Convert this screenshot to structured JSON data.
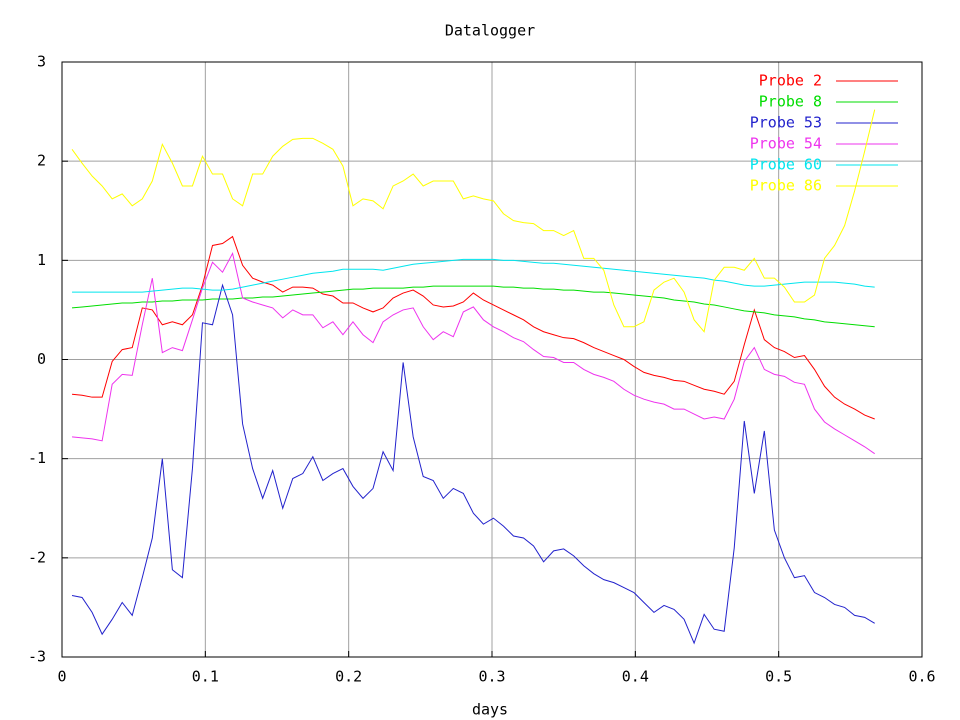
{
  "chart_data": {
    "type": "line",
    "title": "Datalogger",
    "x_label": "days",
    "x": [
      0.007,
      0.014,
      0.021,
      0.028,
      0.035,
      0.042,
      0.049,
      0.056,
      0.063,
      0.07,
      0.077,
      0.084,
      0.091,
      0.098,
      0.105,
      0.112,
      0.119,
      0.126,
      0.133,
      0.14,
      0.147,
      0.154,
      0.161,
      0.168,
      0.175,
      0.182,
      0.189,
      0.196,
      0.203,
      0.21,
      0.217,
      0.224,
      0.231,
      0.238,
      0.245,
      0.252,
      0.259,
      0.266,
      0.273,
      0.28,
      0.287,
      0.294,
      0.301,
      0.308,
      0.315,
      0.322,
      0.329,
      0.336,
      0.343,
      0.35,
      0.357,
      0.364,
      0.371,
      0.378,
      0.385,
      0.392,
      0.399,
      0.406,
      0.413,
      0.42,
      0.427,
      0.434,
      0.441,
      0.448,
      0.455,
      0.462,
      0.469,
      0.476,
      0.483,
      0.49,
      0.497,
      0.504,
      0.511,
      0.518,
      0.525,
      0.532,
      0.539,
      0.546,
      0.553,
      0.56,
      0.567
    ],
    "series": [
      {
        "name": "Probe 2",
        "color": "#ff0000",
        "values": [
          -0.35,
          -0.36,
          -0.38,
          -0.38,
          -0.02,
          0.1,
          0.12,
          0.52,
          0.5,
          0.35,
          0.38,
          0.35,
          0.45,
          0.75,
          1.15,
          1.17,
          1.24,
          0.95,
          0.82,
          0.78,
          0.75,
          0.68,
          0.73,
          0.73,
          0.72,
          0.66,
          0.64,
          0.57,
          0.57,
          0.52,
          0.48,
          0.52,
          0.62,
          0.67,
          0.7,
          0.64,
          0.55,
          0.53,
          0.54,
          0.58,
          0.67,
          0.6,
          0.55,
          0.5,
          0.45,
          0.4,
          0.33,
          0.28,
          0.25,
          0.22,
          0.21,
          0.17,
          0.12,
          0.08,
          0.04,
          0.0,
          -0.07,
          -0.13,
          -0.16,
          -0.18,
          -0.21,
          -0.22,
          -0.26,
          -0.3,
          -0.32,
          -0.35,
          -0.22,
          0.15,
          0.5,
          0.2,
          0.12,
          0.08,
          0.02,
          0.04,
          -0.1,
          -0.27,
          -0.38,
          -0.45,
          -0.5,
          -0.56,
          -0.6
        ]
      },
      {
        "name": "Probe 8",
        "color": "#00dd00",
        "values": [
          0.52,
          0.53,
          0.54,
          0.55,
          0.56,
          0.57,
          0.57,
          0.58,
          0.58,
          0.59,
          0.59,
          0.6,
          0.6,
          0.6,
          0.61,
          0.61,
          0.61,
          0.62,
          0.62,
          0.63,
          0.63,
          0.64,
          0.65,
          0.66,
          0.67,
          0.68,
          0.69,
          0.7,
          0.71,
          0.71,
          0.72,
          0.72,
          0.72,
          0.72,
          0.73,
          0.73,
          0.74,
          0.74,
          0.74,
          0.74,
          0.74,
          0.74,
          0.74,
          0.73,
          0.73,
          0.72,
          0.72,
          0.71,
          0.71,
          0.7,
          0.7,
          0.69,
          0.68,
          0.68,
          0.67,
          0.66,
          0.65,
          0.64,
          0.63,
          0.62,
          0.6,
          0.59,
          0.58,
          0.56,
          0.55,
          0.53,
          0.51,
          0.49,
          0.48,
          0.47,
          0.45,
          0.44,
          0.43,
          0.41,
          0.4,
          0.38,
          0.37,
          0.36,
          0.35,
          0.34,
          0.33
        ]
      },
      {
        "name": "Probe 53",
        "color": "#2222cc",
        "values": [
          -2.38,
          -2.4,
          -2.55,
          -2.77,
          -2.62,
          -2.45,
          -2.58,
          -2.2,
          -1.8,
          -1.0,
          -2.12,
          -2.2,
          -1.1,
          0.37,
          0.35,
          0.75,
          0.45,
          -0.65,
          -1.1,
          -1.4,
          -1.12,
          -1.5,
          -1.2,
          -1.15,
          -0.98,
          -1.22,
          -1.15,
          -1.1,
          -1.28,
          -1.4,
          -1.3,
          -0.93,
          -1.12,
          -0.03,
          -0.78,
          -1.18,
          -1.22,
          -1.4,
          -1.3,
          -1.35,
          -1.55,
          -1.66,
          -1.6,
          -1.68,
          -1.78,
          -1.8,
          -1.88,
          -2.04,
          -1.93,
          -1.91,
          -1.98,
          -2.08,
          -2.16,
          -2.22,
          -2.25,
          -2.3,
          -2.35,
          -2.45,
          -2.55,
          -2.48,
          -2.52,
          -2.62,
          -2.86,
          -2.57,
          -2.72,
          -2.74,
          -1.9,
          -0.62,
          -1.35,
          -0.72,
          -1.72,
          -2.0,
          -2.2,
          -2.18,
          -2.35,
          -2.4,
          -2.47,
          -2.5,
          -2.58,
          -2.6,
          -2.66
        ]
      },
      {
        "name": "Probe 54",
        "color": "#ee33ee",
        "values": [
          -0.78,
          -0.79,
          -0.8,
          -0.82,
          -0.25,
          -0.15,
          -0.16,
          0.35,
          0.82,
          0.07,
          0.12,
          0.09,
          0.4,
          0.72,
          0.98,
          0.88,
          1.07,
          0.62,
          0.58,
          0.55,
          0.52,
          0.42,
          0.5,
          0.45,
          0.45,
          0.32,
          0.38,
          0.25,
          0.38,
          0.25,
          0.17,
          0.38,
          0.45,
          0.5,
          0.52,
          0.33,
          0.2,
          0.28,
          0.23,
          0.48,
          0.53,
          0.4,
          0.33,
          0.28,
          0.22,
          0.18,
          0.1,
          0.03,
          0.02,
          -0.03,
          -0.03,
          -0.1,
          -0.15,
          -0.18,
          -0.22,
          -0.3,
          -0.36,
          -0.4,
          -0.43,
          -0.45,
          -0.5,
          -0.5,
          -0.55,
          -0.6,
          -0.58,
          -0.6,
          -0.4,
          -0.02,
          0.12,
          -0.1,
          -0.15,
          -0.17,
          -0.23,
          -0.25,
          -0.5,
          -0.63,
          -0.7,
          -0.76,
          -0.82,
          -0.88,
          -0.95
        ]
      },
      {
        "name": "Probe 60",
        "color": "#00e5ee",
        "values": [
          0.68,
          0.68,
          0.68,
          0.68,
          0.68,
          0.68,
          0.68,
          0.68,
          0.69,
          0.7,
          0.71,
          0.72,
          0.72,
          0.71,
          0.7,
          0.7,
          0.71,
          0.73,
          0.75,
          0.77,
          0.79,
          0.81,
          0.83,
          0.85,
          0.87,
          0.88,
          0.89,
          0.91,
          0.91,
          0.91,
          0.91,
          0.9,
          0.92,
          0.94,
          0.96,
          0.97,
          0.98,
          0.99,
          1.0,
          1.01,
          1.01,
          1.01,
          1.01,
          1.0,
          1.0,
          0.99,
          0.98,
          0.97,
          0.97,
          0.96,
          0.95,
          0.94,
          0.93,
          0.92,
          0.91,
          0.9,
          0.89,
          0.88,
          0.87,
          0.86,
          0.85,
          0.84,
          0.83,
          0.82,
          0.8,
          0.79,
          0.77,
          0.75,
          0.74,
          0.74,
          0.75,
          0.76,
          0.77,
          0.78,
          0.78,
          0.78,
          0.78,
          0.77,
          0.76,
          0.74,
          0.73
        ]
      },
      {
        "name": "Probe 86",
        "color": "#ffff00",
        "values": [
          2.12,
          1.98,
          1.85,
          1.75,
          1.62,
          1.67,
          1.55,
          1.62,
          1.8,
          2.17,
          1.98,
          1.75,
          1.75,
          2.05,
          1.87,
          1.87,
          1.62,
          1.55,
          1.87,
          1.87,
          2.05,
          2.15,
          2.22,
          2.23,
          2.23,
          2.18,
          2.12,
          1.95,
          1.55,
          1.62,
          1.6,
          1.52,
          1.75,
          1.8,
          1.87,
          1.75,
          1.8,
          1.8,
          1.8,
          1.62,
          1.65,
          1.62,
          1.6,
          1.47,
          1.4,
          1.38,
          1.37,
          1.3,
          1.3,
          1.25,
          1.3,
          1.02,
          1.02,
          0.9,
          0.55,
          0.33,
          0.33,
          0.38,
          0.7,
          0.78,
          0.82,
          0.68,
          0.4,
          0.28,
          0.8,
          0.93,
          0.93,
          0.9,
          1.02,
          0.82,
          0.82,
          0.73,
          0.58,
          0.58,
          0.65,
          1.02,
          1.15,
          1.35,
          1.7,
          2.1,
          2.52
        ]
      }
    ],
    "xlim": [
      0,
      0.6
    ],
    "xticks": [
      0,
      0.1,
      0.2,
      0.3,
      0.4,
      0.5,
      0.6
    ],
    "ylim": [
      -3,
      3
    ],
    "yticks": [
      -3,
      -2,
      -1,
      0,
      1,
      2,
      3
    ],
    "grid": true,
    "legend": "top-right"
  }
}
